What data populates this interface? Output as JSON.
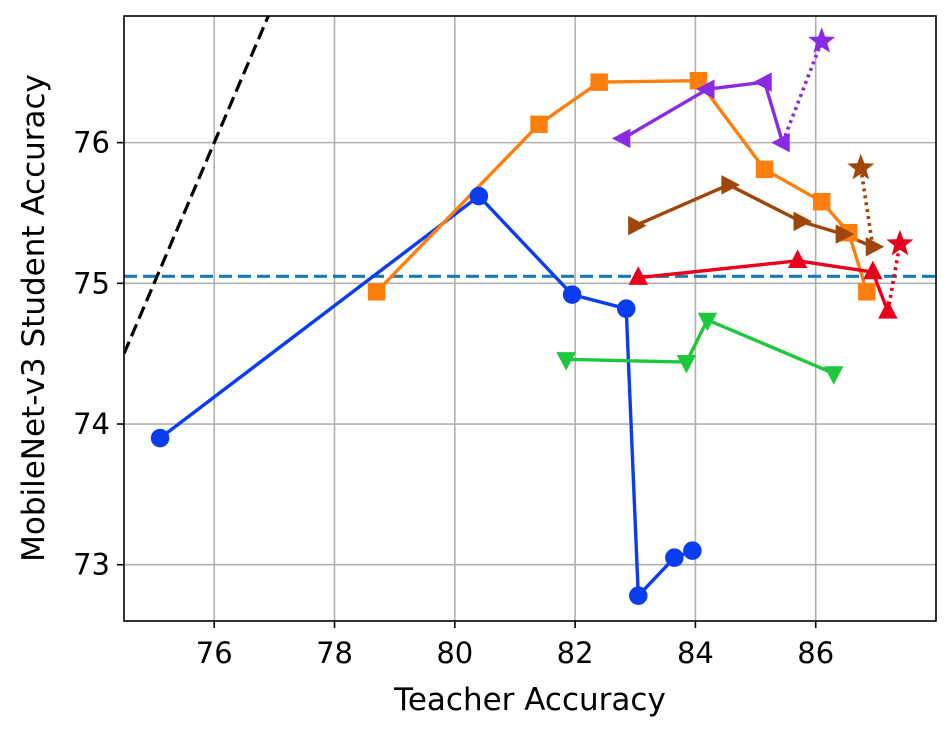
{
  "chart_data": {
    "type": "line",
    "title": "",
    "xlabel": "Teacher Accuracy",
    "ylabel": "MobileNet-v3 Student Accuracy",
    "xlim": [
      74.5,
      88.0
    ],
    "ylim": [
      72.6,
      76.9
    ],
    "xticks": [
      76,
      78,
      80,
      82,
      84,
      86
    ],
    "yticks": [
      73,
      74,
      75,
      76
    ],
    "grid": true,
    "legend": "none",
    "reference_lines": [
      {
        "kind": "horizontal",
        "y": 75.05,
        "style": "dashed",
        "color": "#1f77b4"
      },
      {
        "kind": "diagonal",
        "points": [
          [
            74.5,
            74.5
          ],
          [
            77.0,
            77.0
          ]
        ],
        "style": "dashed",
        "color": "#000000"
      }
    ],
    "series": [
      {
        "color": "#0a3cf0",
        "marker": "circle",
        "style": "solid",
        "points": [
          [
            75.1,
            73.9
          ],
          [
            80.4,
            75.62
          ],
          [
            81.95,
            74.92
          ],
          [
            82.85,
            74.82
          ],
          [
            83.05,
            72.78
          ],
          [
            83.65,
            73.05
          ],
          [
            83.95,
            73.1
          ]
        ]
      },
      {
        "color": "#ff7f0e",
        "marker": "square",
        "style": "solid",
        "points": [
          [
            78.7,
            74.94
          ],
          [
            81.4,
            76.13
          ],
          [
            82.4,
            76.43
          ],
          [
            84.05,
            76.44
          ],
          [
            85.15,
            75.81
          ],
          [
            86.1,
            75.58
          ],
          [
            86.55,
            75.36
          ],
          [
            86.85,
            74.94
          ]
        ]
      },
      {
        "color": "#8a2be2",
        "marker": "triangle-left",
        "style": "solid",
        "points": [
          [
            82.8,
            76.03
          ],
          [
            84.2,
            76.38
          ],
          [
            85.15,
            76.43
          ],
          [
            85.45,
            76.0
          ]
        ]
      },
      {
        "color": "#8a2be2",
        "marker": "star",
        "style": "dotted",
        "points": [
          [
            85.45,
            76.0
          ],
          [
            86.1,
            76.72
          ]
        ]
      },
      {
        "color": "#a0460a",
        "marker": "triangle-right",
        "style": "solid",
        "points": [
          [
            83.0,
            75.41
          ],
          [
            84.55,
            75.7
          ],
          [
            85.75,
            75.44
          ],
          [
            86.45,
            75.35
          ],
          [
            86.95,
            75.26
          ]
        ]
      },
      {
        "color": "#a0460a",
        "marker": "star",
        "style": "dotted",
        "points": [
          [
            86.95,
            75.26
          ],
          [
            86.75,
            75.82
          ]
        ]
      },
      {
        "color": "#e8001c",
        "marker": "triangle-up",
        "style": "solid",
        "points": [
          [
            83.05,
            75.04
          ],
          [
            85.7,
            75.16
          ],
          [
            86.95,
            75.08
          ],
          [
            87.2,
            74.8
          ]
        ]
      },
      {
        "color": "#e8001c",
        "marker": "star",
        "style": "dotted",
        "points": [
          [
            87.2,
            74.8
          ],
          [
            87.4,
            75.28
          ]
        ]
      },
      {
        "color": "#1ec83c",
        "marker": "triangle-down",
        "style": "solid",
        "points": [
          [
            81.85,
            74.46
          ],
          [
            83.85,
            74.44
          ],
          [
            84.2,
            74.74
          ],
          [
            86.3,
            74.36
          ]
        ]
      }
    ]
  }
}
